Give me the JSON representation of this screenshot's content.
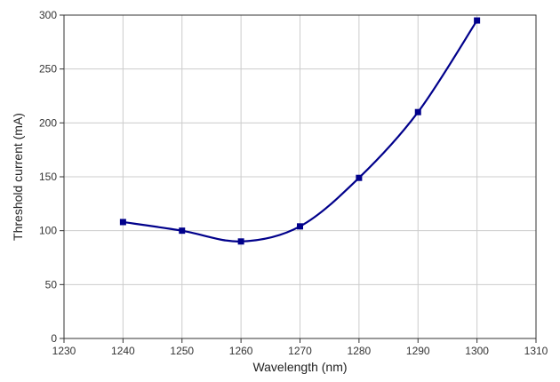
{
  "chart_data": {
    "type": "line",
    "title": "",
    "xlabel": "Wavelength (nm)",
    "ylabel": "Threshold current (mA)",
    "xlim": [
      1230,
      1310
    ],
    "ylim": [
      0,
      300
    ],
    "grid": true,
    "x_ticks": [
      1230,
      1240,
      1250,
      1260,
      1270,
      1280,
      1290,
      1300,
      1310
    ],
    "y_ticks": [
      0,
      50,
      100,
      150,
      200,
      250,
      300
    ],
    "series": [
      {
        "color": "#00008b",
        "marker": "square",
        "smooth": true,
        "x": [
          1240,
          1250,
          1260,
          1270,
          1280,
          1290,
          1300
        ],
        "y": [
          108,
          100,
          90,
          104,
          149,
          210,
          295
        ]
      }
    ]
  }
}
